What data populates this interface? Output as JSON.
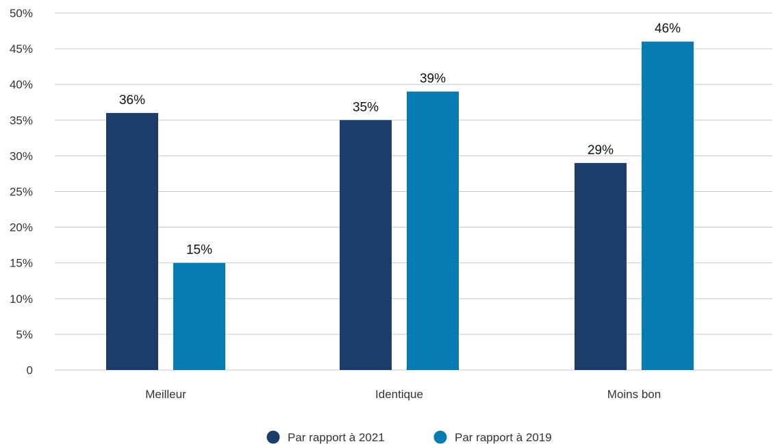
{
  "chart_data": {
    "type": "bar",
    "categories": [
      "Meilleur",
      "Identique",
      "Moins bon"
    ],
    "series": [
      {
        "name": "Par rapport à 2021",
        "color": "#1a3d69",
        "values": [
          36,
          35,
          29
        ],
        "labels": [
          "36%",
          "35%",
          "29%"
        ]
      },
      {
        "name": "Par rapport à 2019",
        "color": "#077cb3",
        "values": [
          15,
          39,
          46
        ],
        "labels": [
          "15%",
          "39%",
          "46%"
        ]
      }
    ],
    "ylim": [
      0,
      50
    ],
    "yticks": [
      0,
      5,
      10,
      15,
      20,
      25,
      30,
      35,
      40,
      45,
      50
    ],
    "ytick_labels": [
      "0",
      "5%",
      "10%",
      "15%",
      "20%",
      "25%",
      "30%",
      "35%",
      "40%",
      "45%",
      "50%"
    ],
    "grid": true,
    "legend_position": "bottom-center"
  }
}
